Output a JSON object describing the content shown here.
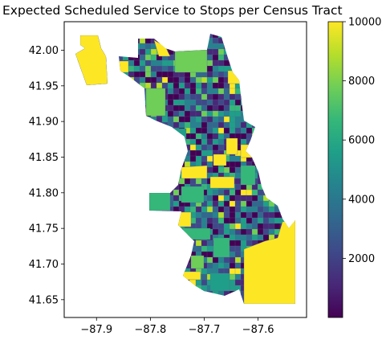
{
  "chart_data": {
    "type": "choropleth_map",
    "title": "Expected Scheduled Service to Stops per Census Tract",
    "x_axis": {
      "ticks": [
        -87.9,
        -87.8,
        -87.7,
        -87.6
      ],
      "tick_labels": [
        "−87.9",
        "−87.8",
        "−87.7",
        "−87.6"
      ],
      "range": [
        -87.96,
        -87.51
      ]
    },
    "y_axis": {
      "ticks": [
        41.65,
        41.7,
        41.75,
        41.8,
        41.85,
        41.9,
        41.95,
        42.0
      ],
      "tick_labels": [
        "41.65",
        "41.70",
        "41.75",
        "41.80",
        "41.85",
        "41.90",
        "41.95",
        "42.00"
      ],
      "range": [
        41.625,
        42.04
      ]
    },
    "colorbar": {
      "colormap": "viridis",
      "range": [
        0,
        10000
      ],
      "ticks": [
        2000,
        4000,
        6000,
        8000,
        10000
      ],
      "tick_labels": [
        "2000",
        "4000",
        "6000",
        "8000",
        "10000"
      ]
    },
    "colors": {
      "viridis": [
        "#440154",
        "#482878",
        "#3e4989",
        "#31688e",
        "#26828e",
        "#1f9e89",
        "#35b779",
        "#6ece58",
        "#b5de2b",
        "#fde725"
      ]
    }
  }
}
